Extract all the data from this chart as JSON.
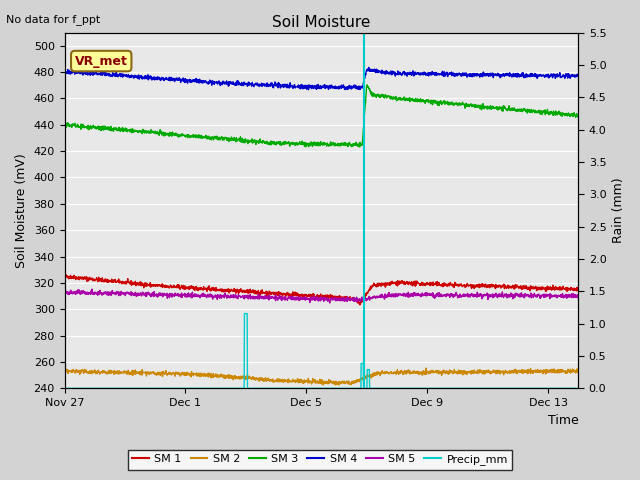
{
  "title": "Soil Moisture",
  "top_left_text": "No data for f_ppt",
  "ylabel_left": "Soil Moisture (mV)",
  "ylabel_right": "Rain (mm)",
  "xlabel": "Time",
  "ylim_left": [
    240,
    510
  ],
  "ylim_right": [
    0.0,
    5.5
  ],
  "yticks_left": [
    240,
    260,
    280,
    300,
    320,
    340,
    360,
    380,
    400,
    420,
    440,
    460,
    480,
    500
  ],
  "yticks_right": [
    0.0,
    0.5,
    1.0,
    1.5,
    2.0,
    2.5,
    3.0,
    3.5,
    4.0,
    4.5,
    5.0,
    5.5
  ],
  "xtick_labels": [
    "Nov 27",
    "Dec 1",
    "Dec 5",
    "Dec 9",
    "Dec 13"
  ],
  "xtick_positions": [
    0,
    4,
    8,
    12,
    16
  ],
  "xlim": [
    0,
    17
  ],
  "vr_met_label": "VR_met",
  "fig_bg_color": "#d3d3d3",
  "plot_bg_color": "#e8e8e8",
  "grid_color": "#ffffff",
  "colors": {
    "SM1": "#cc0000",
    "SM2": "#cc8800",
    "SM3": "#00aa00",
    "SM4": "#0000cc",
    "SM5": "#aa00aa",
    "Precip": "#00cccc"
  },
  "legend_labels": [
    "SM 1",
    "SM 2",
    "SM 3",
    "SM 4",
    "SM 5",
    "Precip_mm"
  ],
  "noise_scale": 0.8,
  "n_points": 1700
}
